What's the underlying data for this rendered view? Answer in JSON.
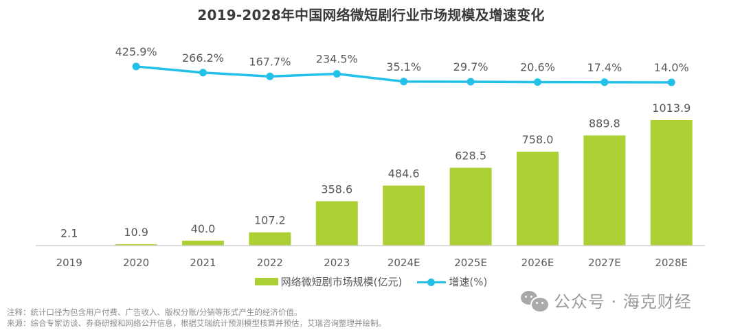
{
  "chart_data": {
    "type": "bar",
    "title": "2019-2028年中国网络微短剧行业市场规模及增速变化",
    "categories": [
      "2019",
      "2020",
      "2021",
      "2022",
      "2023",
      "2024E",
      "2025E",
      "2026E",
      "2027E",
      "2028E"
    ],
    "series": [
      {
        "name": "网络微短剧市场规模(亿元)",
        "type": "bar",
        "color": "#acd033",
        "values": [
          2.1,
          10.9,
          40.0,
          107.2,
          358.6,
          484.6,
          628.5,
          758.0,
          889.8,
          1013.9
        ],
        "labels": [
          "2.1",
          "10.9",
          "40.0",
          "107.2",
          "358.6",
          "484.6",
          "628.5",
          "758.0",
          "889.8",
          "1013.9"
        ]
      },
      {
        "name": "增速(%)",
        "type": "line",
        "color": "#23c0e8",
        "values": [
          null,
          425.9,
          266.2,
          167.7,
          234.5,
          35.1,
          29.7,
          20.6,
          17.4,
          14.0
        ],
        "labels": [
          "",
          "425.9%",
          "266.2%",
          "167.7%",
          "234.5%",
          "35.1%",
          "29.7%",
          "20.6%",
          "17.4%",
          "14.0%"
        ]
      }
    ],
    "xlabel": "",
    "ylabel": "",
    "grid": false,
    "legend_position": "bottom-center"
  },
  "legend": {
    "bar_label": "网络微短剧市场规模(亿元)",
    "line_label": "增速(%)"
  },
  "notes": {
    "note": "注释：统计口径为包含用户付费、广告收入、版权分账/分销等形式产生的经济价值。",
    "source": "来源：综合专家访谈、券商研报和网络公开信息，根据艾瑞统计预测模型核算并预估，艾瑞咨询整理并绘制。"
  },
  "watermark": {
    "text": "公众号 · 海克财经"
  }
}
